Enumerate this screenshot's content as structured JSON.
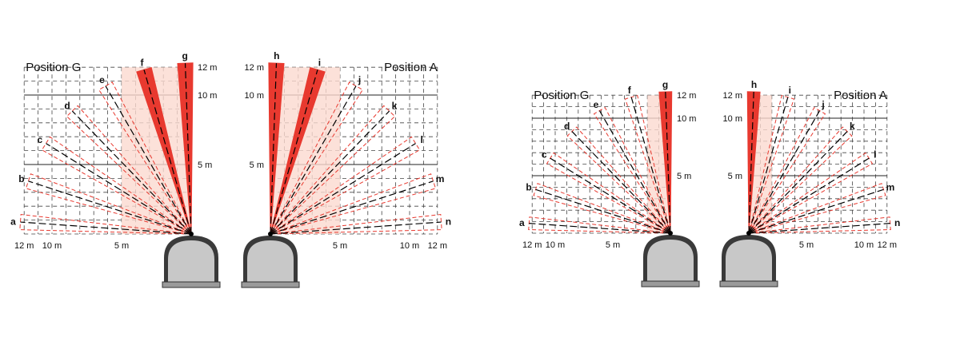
{
  "diagrams": [
    {
      "panels": [
        {
          "side": "left",
          "title": "Position G",
          "zone_labels": [
            "a",
            "b",
            "c",
            "d",
            "e",
            "f",
            "g"
          ],
          "highlighted": [
            "f",
            "g"
          ],
          "x_scale": [
            "12 m",
            "10 m",
            "5 m"
          ],
          "y_scale": [
            "12 m",
            "10 m",
            "5 m"
          ]
        },
        {
          "side": "right",
          "title": "Position A",
          "zone_labels": [
            "h",
            "i",
            "j",
            "k",
            "l",
            "m",
            "n"
          ],
          "highlighted": [
            "h",
            "i"
          ],
          "x_scale": [
            "5 m",
            "10 m",
            "12 m"
          ],
          "y_scale": [
            "12 m",
            "10 m",
            "5 m"
          ]
        }
      ]
    },
    {
      "panels": [
        {
          "side": "left",
          "title": "Position G",
          "zone_labels": [
            "a",
            "b",
            "c",
            "d",
            "e",
            "f",
            "g"
          ],
          "highlighted": [
            "g"
          ],
          "x_scale": [
            "12 m",
            "10 m",
            "5 m"
          ],
          "y_scale": [
            "12 m",
            "10 m",
            "5 m"
          ]
        },
        {
          "side": "right",
          "title": "Position A",
          "zone_labels": [
            "h",
            "i",
            "j",
            "k",
            "l",
            "m",
            "n"
          ],
          "highlighted": [
            "h"
          ],
          "x_scale": [
            "5 m",
            "10 m",
            "12 m"
          ],
          "y_scale": [
            "12 m",
            "10 m",
            "5 m"
          ]
        }
      ]
    }
  ],
  "colors": {
    "zone_active": "#e8392f",
    "zone_outline": "#e8392f",
    "fan_fill": "#fbd9cf",
    "beam_line": "#000000",
    "grid": "#444444",
    "sensor_body": "#c8c8c8"
  }
}
